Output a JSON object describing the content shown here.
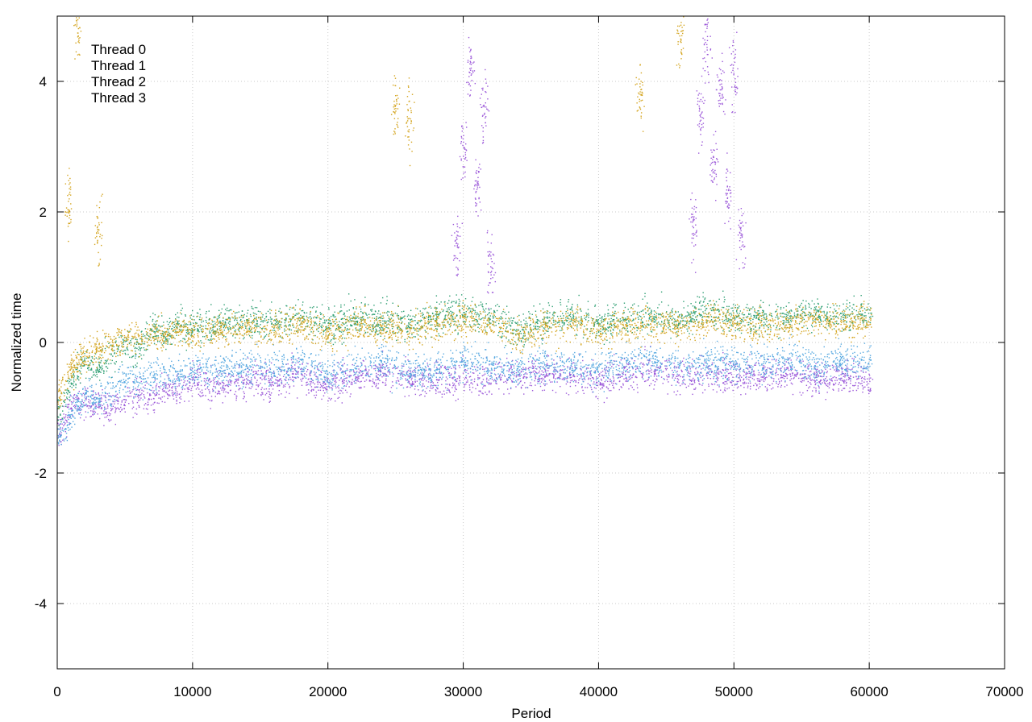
{
  "chart_data": {
    "type": "scatter",
    "title": "",
    "xlabel": "Period",
    "ylabel": "Normalized time",
    "xlim": [
      0,
      70000
    ],
    "ylim": [
      -5,
      5
    ],
    "xticks": [
      0,
      10000,
      20000,
      30000,
      40000,
      50000,
      60000,
      70000
    ],
    "yticks": [
      -4,
      -2,
      0,
      2,
      4
    ],
    "grid": true,
    "legend_position": "top-left",
    "series": [
      {
        "name": "Thread 0",
        "color": "#9c59d9",
        "points": [
          [
            200,
            -1.3
          ],
          [
            1000,
            -1.0
          ],
          [
            2000,
            -0.9
          ],
          [
            3000,
            -0.95
          ],
          [
            4000,
            -1.0
          ],
          [
            5000,
            -0.9
          ],
          [
            6000,
            -0.8
          ],
          [
            7000,
            -0.85
          ],
          [
            8000,
            -0.7
          ],
          [
            9000,
            -0.75
          ],
          [
            10000,
            -0.6
          ],
          [
            12000,
            -0.7
          ],
          [
            14000,
            -0.55
          ],
          [
            16000,
            -0.6
          ],
          [
            18000,
            -0.5
          ],
          [
            20000,
            -0.65
          ],
          [
            22000,
            -0.5
          ],
          [
            24000,
            -0.45
          ],
          [
            26000,
            -0.55
          ],
          [
            28000,
            -0.6
          ],
          [
            29500,
            1.5
          ],
          [
            30000,
            3.0
          ],
          [
            30500,
            4.2
          ],
          [
            31000,
            2.4
          ],
          [
            31500,
            3.6
          ],
          [
            32000,
            1.2
          ],
          [
            34000,
            -0.5
          ],
          [
            36000,
            -0.45
          ],
          [
            38000,
            -0.5
          ],
          [
            40000,
            -0.6
          ],
          [
            42000,
            -0.5
          ],
          [
            44000,
            -0.4
          ],
          [
            46000,
            -0.5
          ],
          [
            47000,
            1.8
          ],
          [
            47500,
            3.5
          ],
          [
            48000,
            4.6
          ],
          [
            48500,
            2.8
          ],
          [
            49000,
            3.9
          ],
          [
            49500,
            2.2
          ],
          [
            50000,
            4.1
          ],
          [
            50500,
            1.6
          ],
          [
            52000,
            -0.5
          ],
          [
            54000,
            -0.45
          ],
          [
            56000,
            -0.55
          ],
          [
            58000,
            -0.5
          ],
          [
            60000,
            -0.6
          ]
        ]
      },
      {
        "name": "Thread 1",
        "color": "#2f9f73",
        "points": [
          [
            200,
            -1.0
          ],
          [
            1000,
            -0.6
          ],
          [
            2000,
            -0.3
          ],
          [
            3000,
            -0.4
          ],
          [
            4000,
            -0.2
          ],
          [
            5000,
            0.0
          ],
          [
            6000,
            -0.1
          ],
          [
            7000,
            0.2
          ],
          [
            8000,
            0.1
          ],
          [
            9000,
            0.3
          ],
          [
            10000,
            0.2
          ],
          [
            12000,
            0.3
          ],
          [
            14000,
            0.35
          ],
          [
            16000,
            0.3
          ],
          [
            18000,
            0.4
          ],
          [
            20000,
            0.25
          ],
          [
            22000,
            0.4
          ],
          [
            24000,
            0.35
          ],
          [
            26000,
            0.3
          ],
          [
            28000,
            0.4
          ],
          [
            30000,
            0.45
          ],
          [
            32000,
            0.4
          ],
          [
            34000,
            0.2
          ],
          [
            36000,
            0.35
          ],
          [
            38000,
            0.4
          ],
          [
            40000,
            0.3
          ],
          [
            42000,
            0.35
          ],
          [
            44000,
            0.4
          ],
          [
            46000,
            0.35
          ],
          [
            48000,
            0.5
          ],
          [
            50000,
            0.4
          ],
          [
            52000,
            0.35
          ],
          [
            54000,
            0.4
          ],
          [
            56000,
            0.45
          ],
          [
            58000,
            0.4
          ],
          [
            60000,
            0.45
          ]
        ]
      },
      {
        "name": "Thread 2",
        "color": "#56a8e0",
        "points": [
          [
            200,
            -1.4
          ],
          [
            1000,
            -1.1
          ],
          [
            2000,
            -0.8
          ],
          [
            3000,
            -0.9
          ],
          [
            4000,
            -0.7
          ],
          [
            5000,
            -0.6
          ],
          [
            6000,
            -0.55
          ],
          [
            7000,
            -0.5
          ],
          [
            8000,
            -0.45
          ],
          [
            9000,
            -0.5
          ],
          [
            10000,
            -0.4
          ],
          [
            12000,
            -0.45
          ],
          [
            14000,
            -0.35
          ],
          [
            16000,
            -0.4
          ],
          [
            18000,
            -0.3
          ],
          [
            20000,
            -0.5
          ],
          [
            22000,
            -0.35
          ],
          [
            24000,
            -0.3
          ],
          [
            26000,
            -0.45
          ],
          [
            28000,
            -0.4
          ],
          [
            30000,
            -0.3
          ],
          [
            32000,
            -0.35
          ],
          [
            34000,
            -0.45
          ],
          [
            36000,
            -0.3
          ],
          [
            38000,
            -0.35
          ],
          [
            40000,
            -0.4
          ],
          [
            42000,
            -0.3
          ],
          [
            44000,
            -0.25
          ],
          [
            46000,
            -0.35
          ],
          [
            48000,
            -0.3
          ],
          [
            50000,
            -0.35
          ],
          [
            52000,
            -0.3
          ],
          [
            54000,
            -0.25
          ],
          [
            56000,
            -0.35
          ],
          [
            58000,
            -0.3
          ],
          [
            60000,
            -0.25
          ]
        ]
      },
      {
        "name": "Thread 3",
        "color": "#d4a520",
        "points": [
          [
            200,
            -0.8
          ],
          [
            1000,
            -0.4
          ],
          [
            2000,
            -0.2
          ],
          [
            3000,
            -0.1
          ],
          [
            4000,
            0.0
          ],
          [
            5000,
            0.05
          ],
          [
            6000,
            0.1
          ],
          [
            7000,
            0.15
          ],
          [
            8000,
            0.1
          ],
          [
            9000,
            0.2
          ],
          [
            10000,
            0.15
          ],
          [
            12000,
            0.2
          ],
          [
            14000,
            0.25
          ],
          [
            16000,
            0.2
          ],
          [
            18000,
            0.3
          ],
          [
            20000,
            0.15
          ],
          [
            22000,
            0.3
          ],
          [
            24000,
            0.25
          ],
          [
            26000,
            0.2
          ],
          [
            28000,
            0.3
          ],
          [
            30000,
            0.35
          ],
          [
            32000,
            0.3
          ],
          [
            34000,
            0.1
          ],
          [
            36000,
            0.25
          ],
          [
            38000,
            0.3
          ],
          [
            40000,
            0.2
          ],
          [
            42000,
            0.25
          ],
          [
            44000,
            0.3
          ],
          [
            46000,
            0.25
          ],
          [
            48000,
            0.35
          ],
          [
            50000,
            0.3
          ],
          [
            52000,
            0.25
          ],
          [
            54000,
            0.3
          ],
          [
            56000,
            0.35
          ],
          [
            58000,
            0.3
          ],
          [
            60000,
            0.35
          ],
          [
            1500,
            4.8
          ],
          [
            800,
            2.2
          ],
          [
            3000,
            1.7
          ],
          [
            25000,
            3.6
          ],
          [
            26000,
            3.4
          ],
          [
            43000,
            3.8
          ],
          [
            46000,
            4.7
          ]
        ]
      }
    ]
  }
}
